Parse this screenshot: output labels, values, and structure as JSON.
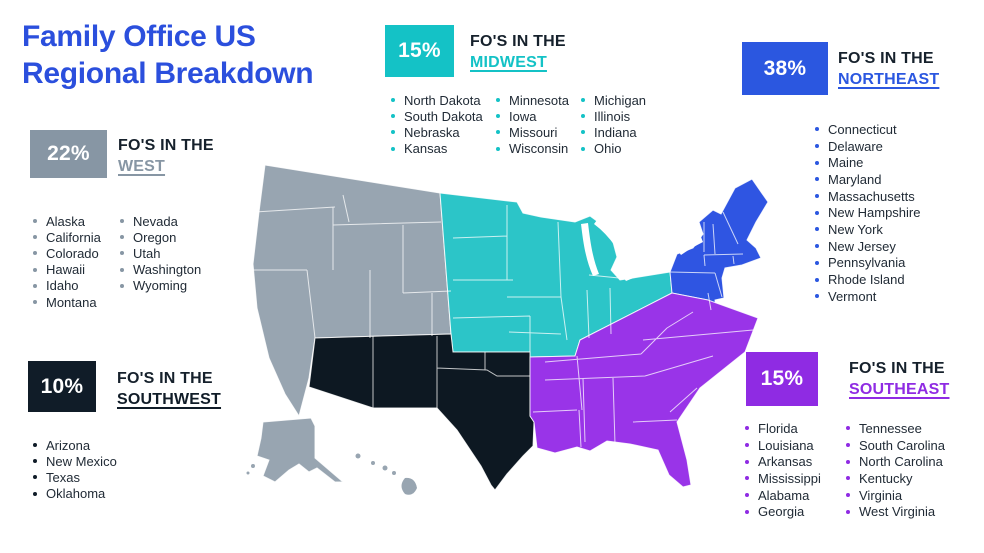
{
  "page": {
    "title_line1": "Family Office US",
    "title_line2": "Regional Breakdown",
    "title_color": "#2b4fdd",
    "background": "#ffffff",
    "text_color": "#212b36",
    "label_prefix_color": "#16212c"
  },
  "regions": [
    {
      "name": "West",
      "pct": "22%",
      "prefix": "FO'S IN THE",
      "label": "WEST",
      "color": "#8796a4",
      "map_color": "#98a5b1",
      "columns": [
        [
          "Alaska",
          "California",
          "Colorado",
          "Hawaii",
          "Idaho",
          "Montana"
        ],
        [
          "Nevada",
          "Oregon",
          "Utah",
          "Washington",
          "Wyoming"
        ]
      ]
    },
    {
      "name": "Midwest",
      "pct": "15%",
      "prefix": "FO'S IN THE",
      "label": "MIDWEST",
      "color": "#14c2c6",
      "map_color": "#2cc5c8",
      "columns": [
        [
          "North Dakota",
          "South Dakota",
          "Nebraska",
          "Kansas"
        ],
        [
          "Minnesota",
          "Iowa",
          "Missouri",
          "Wisconsin"
        ],
        [
          "Michigan",
          "Illinois",
          "Indiana",
          "Ohio"
        ]
      ]
    },
    {
      "name": "Northeast",
      "pct": "38%",
      "prefix": "FO'S IN THE",
      "label": "NORTHEAST",
      "color": "#2b57e0",
      "map_color": "#2f55e2",
      "columns": [
        [
          "Connecticut",
          "Delaware",
          "Maine",
          "Maryland",
          "Massachusetts",
          "New Hampshire",
          "New York",
          "New Jersey",
          "Pennsylvania",
          "Rhode Island",
          "Vermont"
        ]
      ]
    },
    {
      "name": "Southwest",
      "pct": "10%",
      "prefix": "FO'S IN THE",
      "label": "SOUTHWEST",
      "color": "#101c28",
      "map_color": "#0d1822",
      "columns": [
        [
          "Arizona",
          "New Mexico",
          "Texas",
          "Oklahoma"
        ]
      ]
    },
    {
      "name": "Southeast",
      "pct": "15%",
      "prefix": "FO'S IN THE",
      "label": "SOUTHEAST",
      "color": "#8f2be3",
      "map_color": "#9934e8",
      "columns": [
        [
          "Florida",
          "Louisiana",
          "Arkansas",
          "Mississippi",
          "Alabama",
          "Georgia"
        ],
        [
          "Tennessee",
          "South Carolina",
          "North Carolina",
          "Kentucky",
          "Virginia",
          "West Virginia"
        ]
      ]
    }
  ],
  "map": {
    "border_color": "#ffffff",
    "water_color": "#ffffff"
  }
}
